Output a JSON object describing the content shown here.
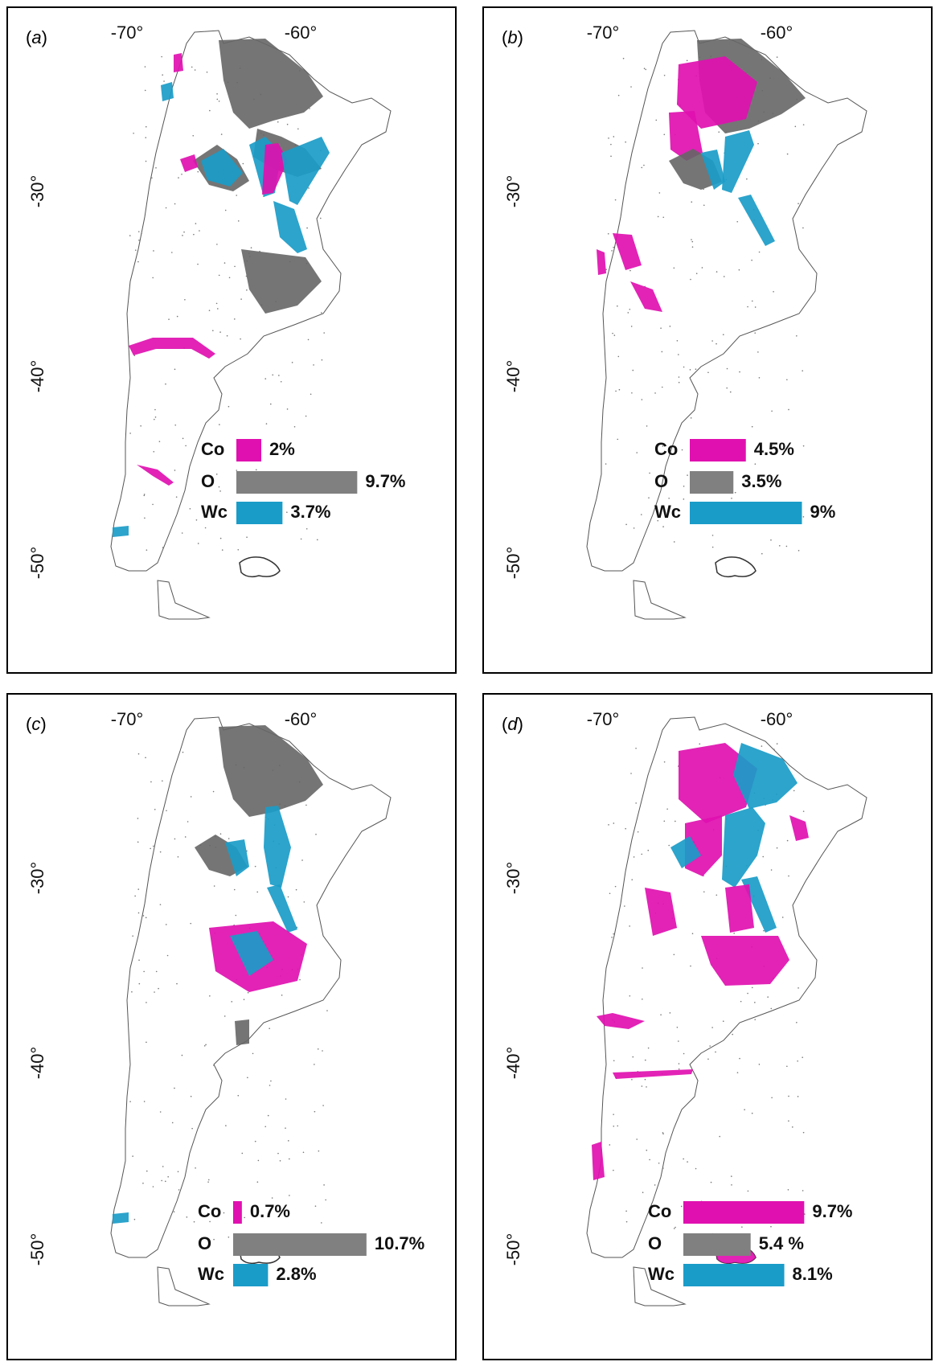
{
  "colors": {
    "Co": "#e010b0",
    "O": "#808080",
    "Wc": "#1a9cc8",
    "land_outline": "#555555",
    "dark_land": "#666666"
  },
  "x_ticks": [
    "-70°",
    "-60°"
  ],
  "y_ticks": [
    "-30°",
    "-40°",
    "-50°"
  ],
  "legend_labels": [
    "Co",
    "O",
    "Wc"
  ],
  "panels": [
    {
      "label_prefix": "(",
      "label_letter": "a",
      "label_suffix": ")",
      "Co": "2%",
      "O": "9.7%",
      "Wc": "3.7%",
      "values": {
        "Co": 2.0,
        "O": 9.7,
        "Wc": 3.7
      }
    },
    {
      "label_prefix": "(",
      "label_letter": "b",
      "label_suffix": ")",
      "Co": "4.5%",
      "O": "3.5%",
      "Wc": "9%",
      "values": {
        "Co": 4.5,
        "O": 3.5,
        "Wc": 9.0
      }
    },
    {
      "label_prefix": "(",
      "label_letter": "c",
      "label_suffix": ")",
      "Co": "0.7%",
      "O": "10.7%",
      "Wc": "2.8%",
      "values": {
        "Co": 0.7,
        "O": 10.7,
        "Wc": 2.8
      }
    },
    {
      "label_prefix": "(",
      "label_letter": "d",
      "label_suffix": ")",
      "Co": "9.7%",
      "O": "5.4 %",
      "Wc": "8.1%",
      "values": {
        "Co": 9.7,
        "O": 5.4,
        "Wc": 8.1
      }
    }
  ]
}
